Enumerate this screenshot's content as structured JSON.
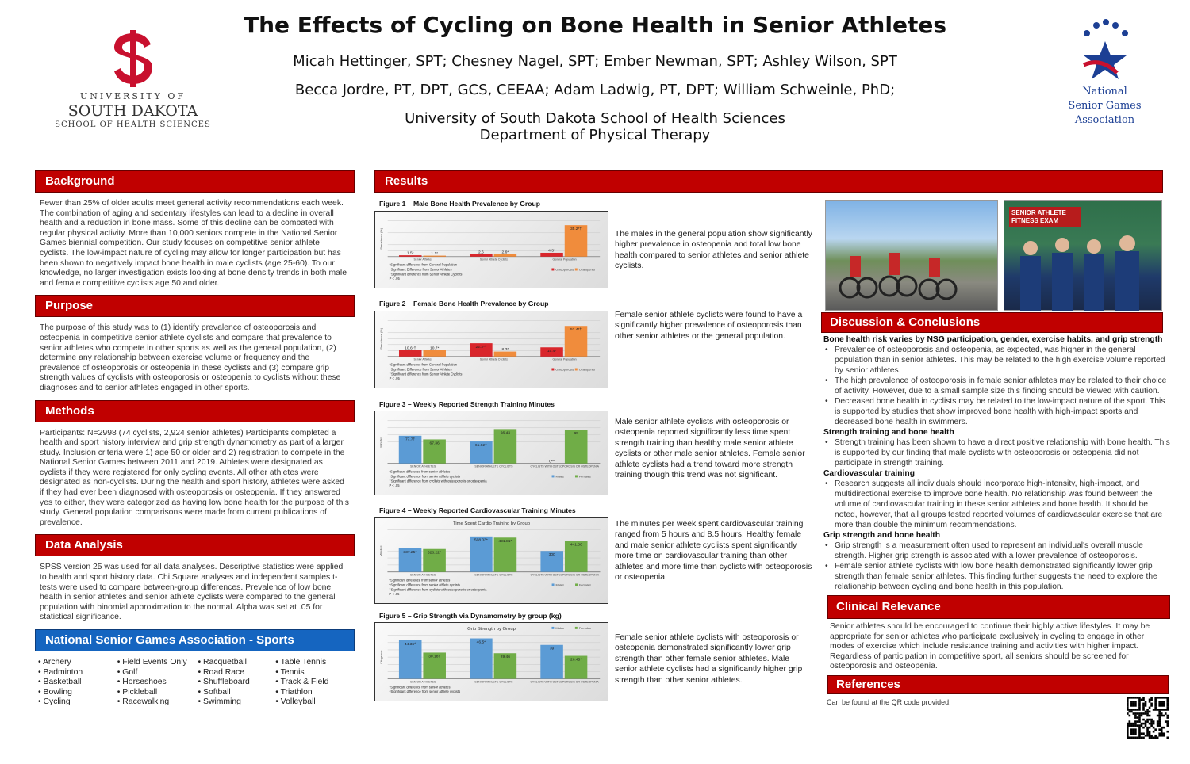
{
  "header": {
    "title": "The Effects of Cycling on Bone Health in Senior Athletes",
    "authors1": "Micah Hettinger, SPT; Chesney Nagel, SPT; Ember Newman, SPT; Ashley Wilson, SPT",
    "authors2": "Becca Jordre, PT, DPT, GCS, CEEAA; Adam Ladwig, PT, DPT; William Schweinle, PhD;",
    "affil1": "University of South Dakota School of Health Sciences",
    "affil2": "Department of Physical Therapy",
    "left_logo": {
      "line1": "UNIVERSITY OF",
      "line2": "SOUTH DAKOTA",
      "line3": "SCHOOL OF HEALTH SCIENCES"
    },
    "right_logo": {
      "line1": "National",
      "line2": "Senior Games",
      "line3": "Association"
    }
  },
  "background": {
    "heading": "Background",
    "text": "Fewer than 25% of older adults meet general activity recommendations each week. The combination of aging and sedentary lifestyles can lead to a decline in overall health and a reduction in bone mass. Some of this decline can be combated with regular physical activity. More than 10,000 seniors compete in the National Senior Games biennial competition. Our study focuses on competitive senior athlete cyclists. The low-impact nature of cycling may allow for longer participation but has been shown to negatively impact bone health in male cyclists (age 25-60). To our knowledge, no larger investigation exists looking at bone density trends in both male and female competitive cyclists age 50 and older."
  },
  "purpose": {
    "heading": "Purpose",
    "text": "The purpose of this study was to (1) identify prevalence of osteoporosis and osteopenia in competitive senior athlete cyclists and compare that prevalence to senior athletes who compete in other sports as well as the general population, (2) determine any relationship between exercise volume or frequency and the prevalence of osteoporosis or osteopenia in these cyclists and (3) compare grip strength values of cyclists with osteoporosis or osteopenia to cyclists without these diagnoses and to senior athletes engaged in other sports."
  },
  "methods": {
    "heading": "Methods",
    "text": "Participants: N=2998 (74 cyclists, 2,924 senior athletes) Participants completed a health and sport history interview and grip strength dynamometry as part of a larger study. Inclusion criteria were 1) age 50 or older and 2) registration to compete in the National Senior Games between 2011 and 2019. Athletes were designated as cyclists if they were registered for only cycling events. All other athletes were designated as non-cyclists. During the health and sport history, athletes were asked if they had ever been diagnosed with osteoporosis or osteopenia. If they answered yes to either, they were categorized as having low bone health for the purpose of this study. General population comparisons were made from current publications of prevalence."
  },
  "data_analysis": {
    "heading": "Data Analysis",
    "text": "SPSS version 25 was used for all data analyses. Descriptive statistics were applied to health and sport history data. Chi Square analyses and independent samples t-tests were used to compare between-group differences. Prevalence of low bone health in senior athletes and senior athlete cyclists were compared to the general population with binomial approximation to the normal. Alpha was set at .05 for statistical significance."
  },
  "sports": {
    "heading": "National Senior Games Association - Sports",
    "columns": [
      [
        "Archery",
        "Badminton",
        "Basketball",
        "Bowling",
        "Cycling"
      ],
      [
        "Field Events Only",
        "Golf",
        "Horseshoes",
        "Pickleball",
        "Racewalking"
      ],
      [
        "Racquetball",
        "Road Race",
        "Shuffleboard",
        "Softball",
        "Swimming"
      ],
      [
        "Table Tennis",
        "Tennis",
        "Track & Field",
        "Triathlon",
        "Volleyball"
      ]
    ]
  },
  "results": {
    "heading": "Results",
    "texts": [
      "The males in the general population show significantly higher prevalence in osteopenia and total low bone health compared to senior athletes and senior athlete cyclists.",
      "Female senior athlete cyclists were found to have a significantly higher prevalence of osteoporosis than other senior athletes or the general population.",
      "Male senior athlete cyclists with osteoporosis or osteopenia reported significantly less time spent strength training than healthy male senior athlete cyclists or other male senior athletes. Female senior athlete cyclists had a trend toward more strength training though this trend was not significant.",
      "The minutes per week spent cardiovascular training ranged from 5 hours and 8.5 hours. Healthy female and male senior athlete cyclists spent significantly more time on cardiovascular training than other athletes and more time than cyclists with osteoporosis or osteopenia.",
      "Female senior athlete cyclists with osteoporosis or osteopenia demonstrated significantly lower grip strength than other female senior athletes. Male senior athlete cyclists had a significantly higher grip strength than other senior athletes."
    ]
  },
  "chart_data": [
    {
      "caption": "Figure 1 – Male Bone Health Prevalence by Group",
      "type": "bar",
      "title": "",
      "ylabel": "Prevalence (%)",
      "ylim": [
        0,
        40
      ],
      "categories": [
        "Senior Athletes",
        "Senior Athlete Cyclists",
        "General Population"
      ],
      "series": [
        {
          "name": "Osteoporosis",
          "color": "#d9262c",
          "values": [
            1.5,
            2.6,
            4.3
          ],
          "labels": [
            "1.5*",
            "2.6",
            "4.3*"
          ]
        },
        {
          "name": "Osteopenia",
          "color": "#f08c3c",
          "values": [
            1.1,
            2.6,
            35.2
          ],
          "labels": [
            "1.1*",
            "2.6*",
            "35.2*†"
          ]
        }
      ],
      "notes": [
        "*Significant difference from General Population",
        "^Significant Difference from Senior Athletes",
        "†Significant difference from Senior Athlete Cyclists",
        "P < .05"
      ],
      "legend": "bottom-right"
    },
    {
      "caption": "Figure 2 – Female Bone Health Prevalence by Group",
      "type": "bar",
      "title": "",
      "ylabel": "Prevalence (%)",
      "ylim": [
        0,
        60
      ],
      "categories": [
        "Senior Athletes",
        "Senior Athlete Cyclists",
        "General Population"
      ],
      "series": [
        {
          "name": "Osteoporosis",
          "color": "#d9262c",
          "values": [
            10.6,
            22.2,
            15.4
          ],
          "labels": [
            "10.6*†",
            "22.2*^",
            "15.4*"
          ]
        },
        {
          "name": "Osteopenia",
          "color": "#f08c3c",
          "values": [
            10.7,
            8.3,
            51.4
          ],
          "labels": [
            "10.7*",
            "8.3*",
            "51.4*†"
          ]
        }
      ],
      "notes": [
        "*Significant difference from General Population",
        "^Significant Difference from Senior Athletes",
        "†Significant difference from Senior Athlete Cyclists",
        "P < .05"
      ],
      "legend": "bottom-right"
    },
    {
      "caption": "Figure 3 – Weekly Reported Strength Training Minutes",
      "type": "bar",
      "title": "",
      "ylabel": "Minutes",
      "ylim": [
        0,
        120
      ],
      "categories": [
        "SENIOR ATHLETES",
        "SENIOR ATHLETE CYCLISTS",
        "CYCLISTS WITH OSTEOPOROSIS OR OSTEOPENIA"
      ],
      "series": [
        {
          "name": "Males",
          "color": "#5b9bd5",
          "values": [
            77.7,
            61.62,
            0
          ],
          "labels": [
            "77.7†",
            "61.62†",
            "0*^"
          ]
        },
        {
          "name": "Females",
          "color": "#70ad47",
          "values": [
            67.36,
            96.43,
            95
          ],
          "labels": [
            "67.36",
            "96.43",
            "95"
          ]
        }
      ],
      "notes": [
        "*Significant difference from senior athletes",
        "^Significant difference from senior athlete cyclists",
        "†Significant difference from cyclists with osteoporosis or osteopenia",
        "P < .05"
      ],
      "legend": "bottom-right"
    },
    {
      "caption": "Figure 4 – Weekly Reported Cardiovascular Training Minutes",
      "type": "bar",
      "title": "Time Spent Cardio Training by Group",
      "ylabel": "Minutes",
      "ylim": [
        0,
        600
      ],
      "categories": [
        "SENIOR ATHLETES",
        "SENIOR ATHLETE CYCLISTS",
        "CYCLISTS WITH OSTEOPOROSIS OR OSTEOPENIA"
      ],
      "series": [
        {
          "name": "Males",
          "color": "#5b9bd5",
          "values": [
            337.25,
            508.03,
            300
          ],
          "labels": [
            "337.25^",
            "508.03*",
            "300"
          ]
        },
        {
          "name": "Females",
          "color": "#70ad47",
          "values": [
            328.22,
            491.81,
            441.36
          ],
          "labels": [
            "328.22^",
            "491.81*",
            "441.36"
          ]
        }
      ],
      "notes": [
        "*Significant difference from senior athletes",
        "^Significant difference from senior athlete cyclists",
        "†Significant difference from cyclists with osteoporosis or osteopenia",
        "P < .05"
      ],
      "legend": "bottom-right"
    },
    {
      "caption": "Figure 5 – Grip Strength via Dynamometry by group (kg)",
      "type": "bar",
      "title": "Grip Strength by Group",
      "ylabel": "Kilograms",
      "ylim": [
        0,
        50
      ],
      "categories": [
        "SENIOR ATHLETES",
        "SENIOR ATHLETE CYCLISTS",
        "CYCLISTS WITH OSTEOPOROSIS OR OSTEOPENIA"
      ],
      "series": [
        {
          "name": "Males",
          "color": "#5b9bd5",
          "values": [
            44.36,
            46.5,
            39
          ],
          "labels": [
            "44.36^",
            "46.5*",
            "39"
          ]
        },
        {
          "name": "Females",
          "color": "#70ad47",
          "values": [
            30.18,
            29.46,
            26.45
          ],
          "labels": [
            "30.18†",
            "29.46",
            "26.45*"
          ]
        }
      ],
      "notes": [
        "*Significant difference from senior athletes",
        "^Significant difference from senior athlete cyclists"
      ],
      "legend": "top-right"
    }
  ],
  "photos": {
    "right_sign": "SENIOR ATHLETE FITNESS EXAM"
  },
  "discussion": {
    "heading": "Discussion & Conclusions",
    "sections": [
      {
        "title": "Bone health risk varies by NSG participation, gender, exercise habits, and grip strength",
        "items": [
          "Prevalence of osteoporosis and osteopenia, as expected, was higher in the general population than in senior athletes. This may be related to the high exercise volume reported by senior athletes.",
          "The high prevalence of osteoporosis in female senior athletes may be related to their choice of activity. However, due to a small sample size this finding should be viewed with caution.",
          "Decreased bone health in cyclists may be related to the low-impact nature of the sport. This is supported by studies that show improved bone health with high-impact sports and decreased bone health in swimmers."
        ]
      },
      {
        "title": "Strength training and bone health",
        "items": [
          "Strength training has been shown to have a direct positive relationship with bone health. This is supported by our finding that male cyclists with osteoporosis or osteopenia did not participate in strength training."
        ]
      },
      {
        "title": "Cardiovascular training",
        "items": [
          "Research suggests all individuals should incorporate high-intensity, high-impact, and multidirectional exercise to improve bone health. No relationship was found between the volume of cardiovascular training in these senior athletes and bone health. It should be noted, however, that all groups tested reported volumes of cardiovascular exercise that are more than double the minimum recommendations."
        ]
      },
      {
        "title": "Grip strength and bone health",
        "items": [
          "Grip strength is a measurement often used to represent an individual's overall muscle strength. Higher grip strength is associated with a lower prevalence of osteoporosis.",
          "Female senior athlete cyclists with low bone health demonstrated significantly lower grip strength than female senior athletes. This finding further suggests the need to explore the relationship between cycling and bone health in this population."
        ]
      }
    ]
  },
  "clinical": {
    "heading": "Clinical Relevance",
    "text": "Senior athletes should be encouraged to continue their highly active lifestyles. It may be appropriate for senior athletes who participate exclusively in cycling to engage in other modes of exercise which include resistance training and activities with higher impact. Regardless of participation in competitive sport, all seniors should be screened for osteoporosis and osteopenia."
  },
  "references": {
    "heading": "References",
    "text": "Can be found at the QR code provided."
  },
  "colors": {
    "usd_red": "#c00000",
    "nsga_blue": "#1565c0"
  }
}
